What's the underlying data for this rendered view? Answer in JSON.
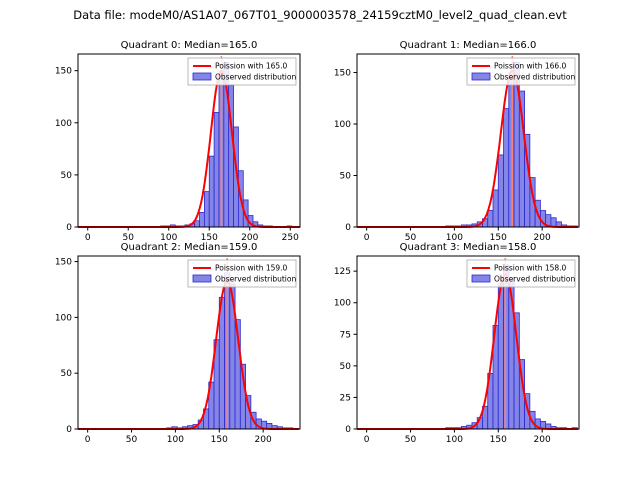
{
  "figure_title": "Data file: modeM0/AS1A07_067T01_9000003578_24159cztM0_level2_quad_clean.evt",
  "colors": {
    "bar_fill": "#8585e8",
    "bar_edge": "#2a2ad0",
    "curve": "#ff0000",
    "median_line": "#fa8072",
    "legend_border": "#aaaaaa",
    "spine": "#000000"
  },
  "chart_data": {
    "type": "bar",
    "layout": "2x2-grid",
    "quadrants": [
      {
        "title": "Quadrant 0: Median=165.0",
        "legend": [
          "Poission with 165.0",
          "Observed distribution"
        ],
        "median": 165,
        "bin_width": 6,
        "bin_centers": [
          93,
          99,
          105,
          111,
          117,
          123,
          129,
          135,
          141,
          147,
          153,
          159,
          165,
          171,
          177,
          183,
          189,
          195,
          201,
          207,
          213,
          219,
          225,
          231,
          237,
          243,
          249
        ],
        "counts": [
          1,
          1,
          2,
          1,
          1,
          2,
          3,
          6,
          14,
          34,
          68,
          110,
          145,
          158,
          136,
          96,
          54,
          26,
          11,
          5,
          2,
          1,
          1,
          0,
          0,
          0,
          1
        ],
        "curve": {
          "mu": 165,
          "sigma": 13,
          "peak": 150
        },
        "x_ticks": [
          0,
          50,
          100,
          150,
          200,
          250
        ],
        "y_ticks": [
          0,
          50,
          100,
          150
        ],
        "xlim": [
          -12,
          262
        ],
        "ylim": 166
      },
      {
        "title": "Quadrant 1: Median=166.0",
        "legend": [
          "Poission with 166.0",
          "Observed distribution"
        ],
        "median": 166,
        "bin_width": 6,
        "bin_centers": [
          93,
          99,
          105,
          111,
          117,
          123,
          129,
          135,
          141,
          147,
          153,
          159,
          165,
          171,
          177,
          183,
          189,
          195,
          201,
          207,
          213,
          219,
          225,
          231,
          237
        ],
        "counts": [
          1,
          1,
          1,
          2,
          2,
          3,
          5,
          8,
          16,
          36,
          70,
          115,
          150,
          160,
          132,
          90,
          48,
          26,
          16,
          12,
          9,
          5,
          2,
          1,
          1
        ],
        "curve": {
          "mu": 166,
          "sigma": 13,
          "peak": 152
        },
        "x_ticks": [
          0,
          50,
          100,
          150,
          200
        ],
        "y_ticks": [
          0,
          50,
          100,
          150
        ],
        "xlim": [
          -11,
          242
        ],
        "ylim": 168
      },
      {
        "title": "Quadrant 2: Median=159.0",
        "legend": [
          "Poission with 159.0",
          "Observed distribution"
        ],
        "median": 159,
        "bin_width": 6,
        "bin_centers": [
          93,
          99,
          105,
          111,
          117,
          123,
          129,
          135,
          141,
          147,
          153,
          159,
          165,
          171,
          177,
          183,
          189,
          195,
          201,
          207,
          213,
          219,
          225,
          231
        ],
        "counts": [
          1,
          2,
          1,
          2,
          3,
          4,
          8,
          18,
          42,
          80,
          118,
          140,
          130,
          98,
          58,
          30,
          15,
          9,
          7,
          5,
          3,
          2,
          1,
          1
        ],
        "curve": {
          "mu": 159,
          "sigma": 12.5,
          "peak": 133
        },
        "x_ticks": [
          0,
          50,
          100,
          150,
          200
        ],
        "y_ticks": [
          0,
          50,
          100,
          150
        ],
        "xlim": [
          -11,
          242
        ],
        "ylim": 155
      },
      {
        "title": "Quadrant 3: Median=158.0",
        "legend": [
          "Poission with 158.0",
          "Observed distribution"
        ],
        "median": 158,
        "bin_width": 6,
        "bin_centers": [
          93,
          99,
          105,
          111,
          117,
          123,
          129,
          135,
          141,
          147,
          153,
          159,
          165,
          171,
          177,
          183,
          189,
          195,
          201,
          207,
          213,
          219,
          225,
          231,
          237
        ],
        "counts": [
          1,
          1,
          1,
          2,
          3,
          5,
          9,
          18,
          44,
          82,
          115,
          130,
          120,
          92,
          55,
          28,
          14,
          8,
          6,
          4,
          2,
          1,
          1,
          0,
          1
        ],
        "curve": {
          "mu": 158,
          "sigma": 12.5,
          "peak": 123
        },
        "x_ticks": [
          0,
          50,
          100,
          150,
          200
        ],
        "y_ticks": [
          0,
          25,
          50,
          75,
          100,
          125
        ],
        "xlim": [
          -11,
          242
        ],
        "ylim": 137
      }
    ]
  }
}
